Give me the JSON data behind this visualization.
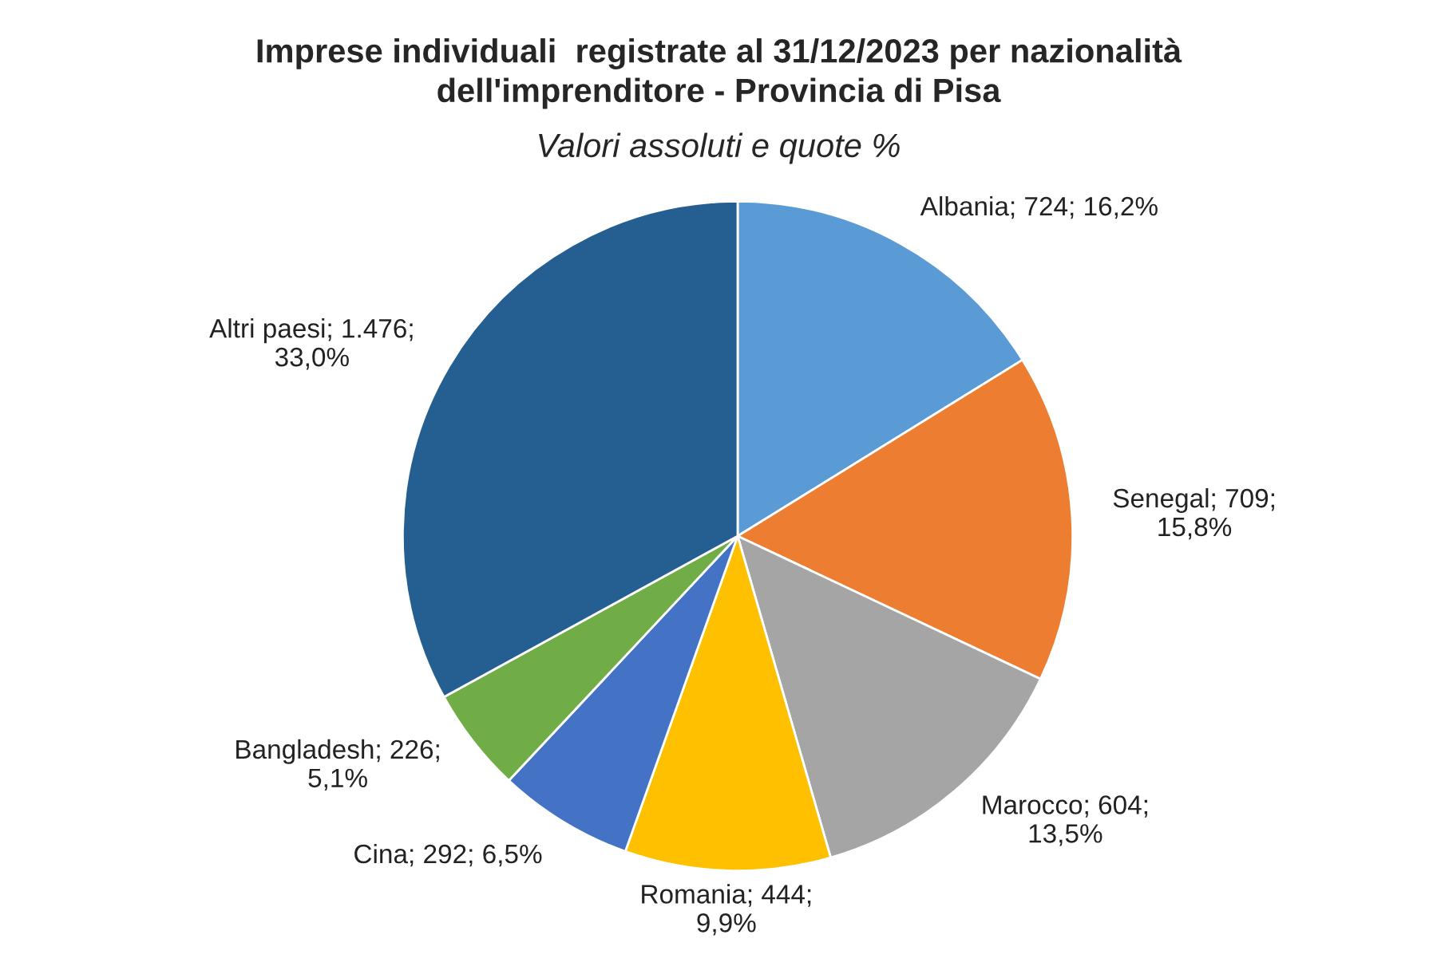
{
  "chart_data": {
    "type": "pie",
    "title": "Imprese individuali  registrate al 31/12/2023 per nazionalità\ndell'imprenditore - Provincia di Pisa",
    "subtitle": "Valori assoluti e quote %",
    "categories": [
      "Albania",
      "Senegal",
      "Marocco",
      "Romania",
      "Cina",
      "Bangladesh",
      "Altri paesi"
    ],
    "values": [
      724,
      709,
      604,
      444,
      292,
      226,
      1476
    ],
    "value_labels": [
      "724; 16,2%",
      "709;\n15,8%",
      "604;\n13,5%",
      "444;\n9,9%",
      "292; 6,5%",
      "226;\n5,1%",
      "1.476;\n33,0%"
    ],
    "colors": [
      "#5b9bd5",
      "#ed7d31",
      "#a5a5a5",
      "#ffc000",
      "#4472c4",
      "#70ad47",
      "#255e91"
    ]
  }
}
